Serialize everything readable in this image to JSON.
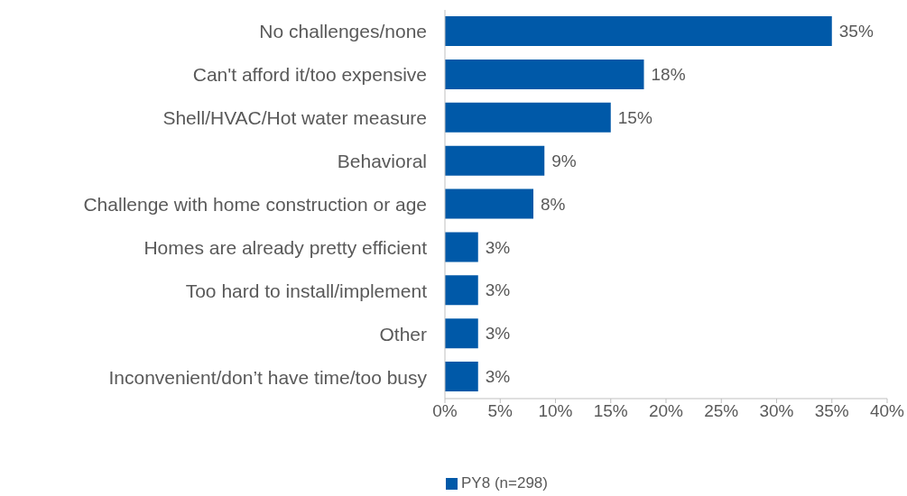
{
  "chart_data": {
    "type": "bar",
    "orientation": "horizontal",
    "categories": [
      "No challenges/none",
      "Can't afford it/too expensive",
      "Shell/HVAC/Hot water measure",
      "Behavioral",
      "Challenge with home construction or age",
      "Homes are already pretty efficient",
      "Too hard to install/implement",
      "Other",
      "Inconvenient/don’t have time/too busy"
    ],
    "series": [
      {
        "name": "PY8 (n=298)",
        "color": "#0059a8",
        "values": [
          35,
          18,
          15,
          9,
          8,
          3,
          3,
          3,
          3
        ],
        "value_labels": [
          "35%",
          "18%",
          "15%",
          "9%",
          "8%",
          "3%",
          "3%",
          "3%",
          "3%"
        ]
      }
    ],
    "xlim": [
      0,
      40
    ],
    "xticks": [
      {
        "value": 0,
        "label": "0%"
      },
      {
        "value": 5,
        "label": "5%"
      },
      {
        "value": 10,
        "label": "10%"
      },
      {
        "value": 15,
        "label": "15%"
      },
      {
        "value": 20,
        "label": "20%"
      },
      {
        "value": 25,
        "label": "25%"
      },
      {
        "value": 30,
        "label": "30%"
      },
      {
        "value": 35,
        "label": "35%"
      },
      {
        "value": 40,
        "label": "40%"
      }
    ],
    "grid": false,
    "legend": "bottom"
  }
}
